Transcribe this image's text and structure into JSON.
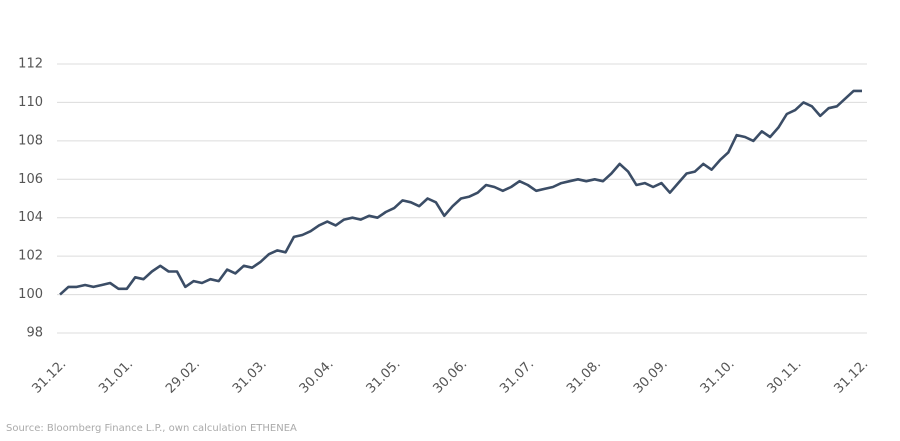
{
  "chart_data": {
    "type": "line",
    "source": "Source: Bloomberg Finance L.P., own calculation ETHENEA",
    "categories": [
      "31.12.",
      null,
      null,
      null,
      null,
      null,
      null,
      null,
      "31.01.",
      null,
      null,
      null,
      null,
      null,
      null,
      null,
      "29.02.",
      null,
      null,
      null,
      null,
      null,
      null,
      null,
      "31.03.",
      null,
      null,
      null,
      null,
      null,
      null,
      null,
      "30.04.",
      null,
      null,
      null,
      null,
      null,
      null,
      null,
      "31.05.",
      null,
      null,
      null,
      null,
      null,
      null,
      null,
      "30.06.",
      null,
      null,
      null,
      null,
      null,
      null,
      null,
      "31.07.",
      null,
      null,
      null,
      null,
      null,
      null,
      null,
      "31.08.",
      null,
      null,
      null,
      null,
      null,
      null,
      null,
      "30.09.",
      null,
      null,
      null,
      null,
      null,
      null,
      null,
      "31.10.",
      null,
      null,
      null,
      null,
      null,
      null,
      null,
      "30.11.",
      null,
      null,
      null,
      null,
      null,
      null,
      null,
      "31.12."
    ],
    "series": [
      {
        "color": "#3b4d66",
        "values": [
          100.0,
          100.4,
          100.4,
          100.5,
          100.4,
          100.5,
          100.6,
          100.3,
          100.3,
          100.9,
          100.8,
          101.2,
          101.5,
          101.2,
          101.2,
          100.4,
          100.7,
          100.6,
          100.8,
          100.7,
          101.3,
          101.1,
          101.5,
          101.4,
          101.7,
          102.1,
          102.3,
          102.2,
          103.0,
          103.1,
          103.3,
          103.6,
          103.8,
          103.6,
          103.9,
          104.0,
          103.9,
          104.1,
          104.0,
          104.3,
          104.5,
          104.9,
          104.8,
          104.6,
          105.0,
          104.8,
          104.1,
          104.6,
          105.0,
          105.1,
          105.3,
          105.7,
          105.6,
          105.4,
          105.6,
          105.9,
          105.7,
          105.4,
          105.5,
          105.6,
          105.8,
          105.9,
          106.0,
          105.9,
          106.0,
          105.9,
          106.3,
          106.8,
          106.4,
          105.7,
          105.8,
          105.6,
          105.8,
          105.3,
          105.8,
          106.3,
          106.4,
          106.8,
          106.5,
          107.0,
          107.4,
          108.3,
          108.2,
          108.0,
          108.5,
          108.2,
          108.7,
          109.4,
          109.6,
          110.0,
          109.8,
          109.3,
          109.7,
          109.8,
          110.2,
          110.6,
          110.6
        ]
      }
    ],
    "ylim": [
      98,
      112
    ],
    "yticks": [
      98,
      100,
      102,
      104,
      106,
      108,
      110,
      112
    ],
    "grid": true
  }
}
